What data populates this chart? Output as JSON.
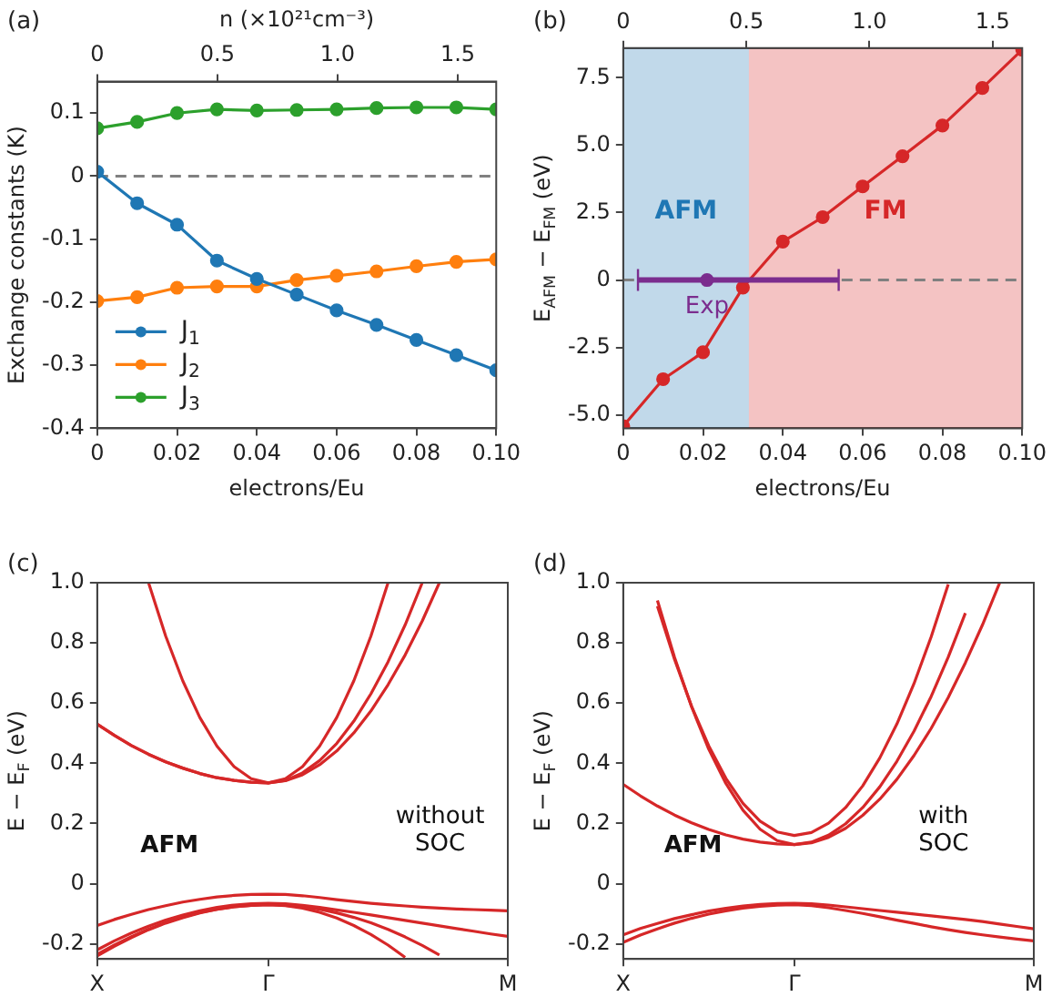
{
  "chart_data": [
    {
      "type": "line",
      "title": "(a)",
      "xlabel": "electrons/Eu",
      "ylabel": "Exchange constants (K)",
      "x2label": "n (×10²¹cm⁻³)",
      "xlim": [
        0,
        0.1
      ],
      "xticks": [
        0,
        0.02,
        0.04,
        0.06,
        0.08,
        {
          "value": 0.1,
          "label": "0.10"
        }
      ],
      "x2lim": [
        0,
        1.66
      ],
      "x2ticks": [
        0,
        0.5,
        {
          "value": 1,
          "label": "1.0"
        },
        1.5
      ],
      "ylim": [
        -0.4,
        0.15
      ],
      "yticks": [
        -0.4,
        -0.3,
        -0.2,
        -0.1,
        0,
        0.1
      ],
      "marker": "circle",
      "legend": "bottom left",
      "x": [
        0,
        0.01,
        0.02,
        0.03,
        0.04,
        0.05,
        0.06,
        0.07,
        0.08,
        0.09,
        0.1
      ],
      "series": [
        {
          "name": "J$_{1}$",
          "color": "#1f77b4",
          "values": [
            0.007,
            -0.043,
            -0.077,
            -0.134,
            -0.163,
            -0.188,
            -0.213,
            -0.236,
            -0.26,
            -0.284,
            -0.308
          ]
        },
        {
          "name": "J$_{2}$",
          "color": "#ff7f0e",
          "values": [
            -0.198,
            -0.192,
            -0.177,
            -0.175,
            -0.175,
            -0.165,
            -0.158,
            -0.151,
            -0.143,
            -0.136,
            -0.132
          ]
        },
        {
          "name": "J$_{3}$",
          "color": "#2ca02c",
          "values": [
            0.076,
            0.086,
            0.1,
            0.106,
            0.104,
            0.105,
            0.106,
            0.108,
            0.109,
            0.109,
            0.106
          ]
        }
      ],
      "ref_lines": [
        {
          "axis": "y",
          "value": 0,
          "color": "#808080",
          "line_style": "dashed"
        }
      ]
    },
    {
      "type": "line",
      "title": "(b)",
      "xlabel": "electrons/Eu",
      "ylabel": "E$_{AFM}$ − E$_{FM}$ (eV)",
      "xlim": [
        0,
        0.1
      ],
      "xticks": [
        0,
        0.02,
        0.04,
        0.06,
        0.08,
        {
          "value": 0.1,
          "label": "0.10"
        }
      ],
      "x2lim": [
        0,
        1.62
      ],
      "x2ticks": [
        0,
        0.5,
        {
          "value": 1,
          "label": "1.0"
        },
        1.5
      ],
      "ylim": [
        -5.5,
        8.6
      ],
      "yticks": [
        {
          "value": -5,
          "label": "-5.0"
        },
        -2.5,
        0,
        2.5,
        {
          "value": 5,
          "label": "5.0"
        },
        7.5
      ],
      "marker": "circle",
      "x": [
        0,
        0.01,
        0.02,
        0.03,
        0.04,
        0.05,
        0.06,
        0.07,
        0.08,
        0.09,
        0.1
      ],
      "series": [
        {
          "color": "#d62728",
          "values": [
            -5.42,
            -3.68,
            -2.68,
            -0.28,
            1.42,
            2.33,
            3.47,
            4.59,
            5.73,
            7.12,
            8.54
          ]
        },
        {
          "name": "Exp",
          "type": "scatter",
          "color": "#7b2d8e",
          "x": [
            0.021
          ],
          "values": [
            0
          ],
          "xerrors": [
            [
              0.0037,
              0.054
            ]
          ]
        }
      ],
      "ref_lines": [
        {
          "axis": "y",
          "value": 0,
          "color": "#808080",
          "line_style": "dashed"
        }
      ],
      "bands": [
        {
          "axis": "x",
          "from": 0,
          "to": 0.0315,
          "label": "AFM",
          "color": "#1f77b4"
        },
        {
          "axis": "x",
          "from": 0.0315,
          "to": 0.1,
          "label": "FM",
          "color": "#d62728"
        }
      ]
    },
    {
      "type": "line",
      "title": "(c)",
      "ylabel": "E − E$_{F}$ (eV)",
      "categories": [
        "X",
        null,
        null,
        null,
        null,
        null,
        null,
        null,
        null,
        null,
        "Γ",
        null,
        null,
        null,
        null,
        null,
        null,
        null,
        null,
        null,
        null,
        null,
        null,
        null,
        "M"
      ],
      "ylim": [
        -0.25,
        1
      ],
      "yticks": [
        -0.2,
        0,
        0.2,
        0.4,
        0.6,
        0.8,
        {
          "value": 1,
          "label": "1.0"
        }
      ],
      "marker": "none",
      "annotations": [
        "AFM",
        "without SOC"
      ],
      "series": [
        {
          "color": "#d62728",
          "values": [
            null,
            null,
            null,
            1.0,
            0.823,
            0.674,
            0.552,
            0.457,
            0.389,
            0.349,
            0.335,
            0.349,
            0.389,
            0.457,
            0.552,
            0.674,
            0.823,
            1.0,
            null,
            null,
            null,
            null,
            null,
            null,
            null
          ]
        },
        {
          "color": "#d62728",
          "values": [
            0.53,
            0.493,
            0.459,
            0.43,
            0.405,
            0.384,
            0.366,
            0.352,
            0.343,
            0.337,
            0.335,
            0.343,
            0.368,
            0.409,
            0.466,
            0.54,
            0.631,
            0.737,
            0.86,
            1.0,
            null,
            null,
            null,
            null,
            null
          ]
        },
        {
          "color": "#d62728",
          "values": [
            0.53,
            0.493,
            0.459,
            0.43,
            0.405,
            0.384,
            0.366,
            0.352,
            0.343,
            0.337,
            0.335,
            0.342,
            0.362,
            0.395,
            0.441,
            0.501,
            0.574,
            0.661,
            0.76,
            0.873,
            1.0,
            null,
            null,
            null,
            null
          ]
        },
        {
          "color": "#d62728",
          "values": [
            -0.139,
            -0.119,
            -0.102,
            -0.086,
            -0.073,
            -0.061,
            -0.052,
            -0.044,
            -0.039,
            -0.036,
            -0.035,
            -0.036,
            -0.04,
            -0.046,
            -0.053,
            -0.059,
            -0.065,
            -0.07,
            -0.074,
            -0.078,
            -0.081,
            -0.084,
            -0.086,
            -0.088,
            -0.09
          ]
        },
        {
          "color": "#d62728",
          "values": [
            -0.22,
            -0.19,
            -0.164,
            -0.141,
            -0.121,
            -0.104,
            -0.09,
            -0.079,
            -0.071,
            -0.067,
            -0.065,
            -0.067,
            -0.072,
            -0.079,
            -0.087,
            -0.095,
            -0.104,
            -0.113,
            -0.122,
            -0.131,
            -0.14,
            -0.149,
            -0.158,
            -0.167,
            -0.175
          ]
        },
        {
          "color": "#d62728",
          "values": [
            -0.235,
            -0.204,
            -0.176,
            -0.151,
            -0.129,
            -0.111,
            -0.096,
            -0.085,
            -0.077,
            -0.072,
            -0.07,
            -0.072,
            -0.077,
            -0.085,
            -0.097,
            -0.112,
            -0.13,
            -0.152,
            -0.177,
            -0.205,
            -0.237,
            null,
            null,
            null,
            null
          ]
        },
        {
          "color": "#d62728",
          "values": [
            -0.24,
            -0.208,
            -0.179,
            -0.153,
            -0.131,
            -0.113,
            -0.097,
            -0.085,
            -0.077,
            -0.072,
            -0.07,
            -0.073,
            -0.081,
            -0.095,
            -0.114,
            -0.139,
            -0.169,
            -0.204,
            -0.245,
            null,
            null,
            null,
            null,
            null,
            null
          ]
        }
      ]
    },
    {
      "type": "line",
      "title": "(d)",
      "ylabel": "E − E$_{F}$ (eV)",
      "categories": [
        "X",
        null,
        null,
        null,
        null,
        null,
        null,
        null,
        null,
        null,
        "Γ",
        null,
        null,
        null,
        null,
        null,
        null,
        null,
        null,
        null,
        null,
        null,
        null,
        null,
        "M"
      ],
      "ylim": [
        -0.25,
        1
      ],
      "yticks": [
        -0.2,
        0,
        0.2,
        0.4,
        0.6,
        0.8,
        {
          "value": 1,
          "label": "1.0"
        }
      ],
      "marker": "none",
      "annotations": [
        "AFM",
        "with SOC"
      ],
      "series": [
        {
          "color": "#d62728",
          "values": [
            null,
            null,
            0.922,
            0.745,
            0.589,
            0.458,
            0.35,
            0.267,
            0.208,
            0.172,
            0.16,
            0.17,
            0.201,
            0.253,
            0.325,
            0.418,
            0.531,
            0.665,
            0.82,
            0.995,
            null,
            null,
            null,
            null,
            null
          ]
        },
        {
          "color": "#d62728",
          "values": [
            null,
            null,
            0.941,
            0.752,
            0.587,
            0.447,
            0.333,
            0.244,
            0.181,
            0.143,
            0.13,
            0.138,
            0.161,
            0.199,
            0.253,
            0.322,
            0.407,
            0.507,
            0.622,
            0.753,
            0.899,
            null,
            null,
            null,
            null
          ]
        },
        {
          "color": "#d62728",
          "values": [
            0.33,
            0.292,
            0.258,
            0.228,
            0.202,
            0.18,
            0.162,
            0.148,
            0.138,
            0.132,
            0.13,
            0.136,
            0.154,
            0.184,
            0.227,
            0.281,
            0.347,
            0.426,
            0.516,
            0.619,
            0.734,
            0.86,
            0.999,
            null,
            null
          ]
        },
        {
          "color": "#d62728",
          "values": [
            -0.17,
            -0.149,
            -0.132,
            -0.116,
            -0.103,
            -0.091,
            -0.082,
            -0.074,
            -0.069,
            -0.066,
            -0.065,
            -0.067,
            -0.071,
            -0.077,
            -0.083,
            -0.089,
            -0.095,
            -0.101,
            -0.107,
            -0.113,
            -0.119,
            -0.126,
            -0.134,
            -0.142,
            -0.15
          ]
        },
        {
          "color": "#d62728",
          "values": [
            -0.195,
            -0.171,
            -0.15,
            -0.131,
            -0.115,
            -0.101,
            -0.09,
            -0.081,
            -0.075,
            -0.071,
            -0.07,
            -0.073,
            -0.08,
            -0.089,
            -0.099,
            -0.11,
            -0.121,
            -0.132,
            -0.143,
            -0.153,
            -0.162,
            -0.17,
            -0.177,
            -0.184,
            -0.19
          ]
        }
      ]
    }
  ]
}
